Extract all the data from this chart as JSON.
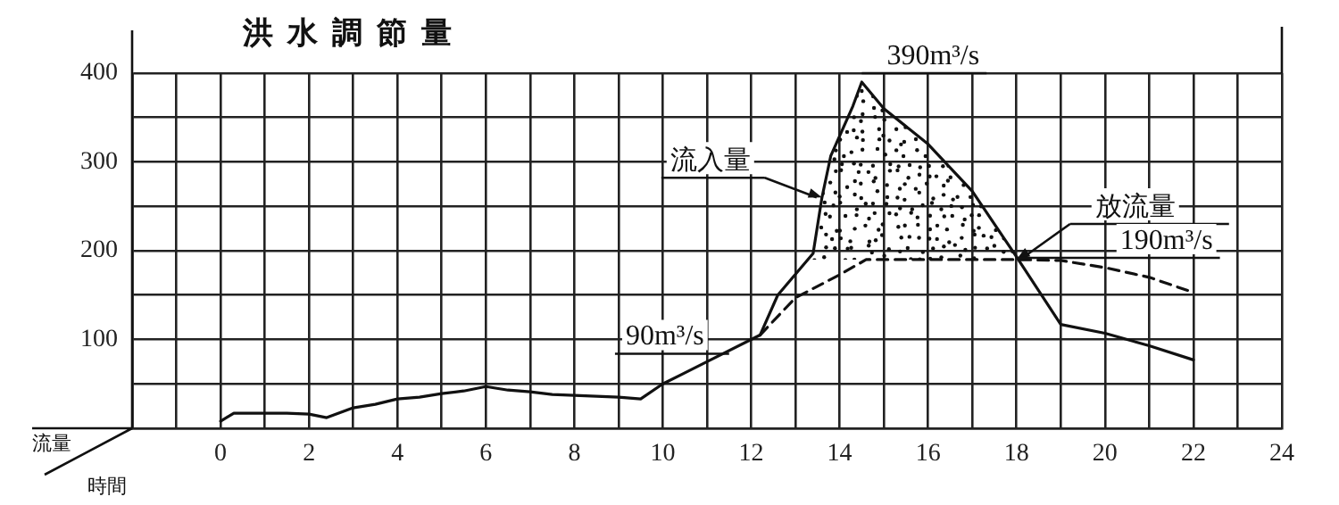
{
  "chart_data": {
    "type": "line",
    "title": "洪水調節量",
    "xlabel": "時間",
    "ylabel": "流量",
    "xlim": [
      -2,
      24
    ],
    "ylim": [
      0,
      400
    ],
    "xticks": [
      {
        "value": -2,
        "label": null
      },
      {
        "value": -1,
        "label": null
      },
      0,
      {
        "value": 1,
        "label": null
      },
      2,
      {
        "value": 3,
        "label": null
      },
      4,
      {
        "value": 5,
        "label": null
      },
      6,
      {
        "value": 7,
        "label": null
      },
      8,
      {
        "value": 9,
        "label": null
      },
      10,
      {
        "value": 11,
        "label": null
      },
      12,
      {
        "value": 13,
        "label": null
      },
      14,
      {
        "value": 15,
        "label": null
      },
      16,
      {
        "value": 17,
        "label": null
      },
      18,
      {
        "value": 19,
        "label": null
      },
      20,
      {
        "value": 21,
        "label": null
      },
      22,
      {
        "value": 23,
        "label": null
      },
      24
    ],
    "yticks": [
      {
        "value": 0,
        "label": null
      },
      {
        "value": 50,
        "label": null
      },
      100,
      {
        "value": 150,
        "label": null
      },
      200,
      {
        "value": 250,
        "label": null
      },
      300,
      {
        "value": 350,
        "label": null
      },
      400
    ],
    "grid": true,
    "legend": false,
    "marker": "none",
    "series": [
      {
        "name": "流入量",
        "color": "#111111",
        "line_style": "solid",
        "x": [
          0,
          0.3,
          1,
          1.5,
          2,
          2.4,
          3,
          3.5,
          4,
          4.5,
          5,
          5.5,
          6,
          6.5,
          7,
          7.5,
          8,
          8.5,
          9,
          9.5,
          10,
          11,
          12.2,
          12.6,
          13.4,
          13.6,
          13.8,
          14.3,
          14.5,
          15,
          16,
          17,
          18,
          19,
          20,
          21,
          22
        ],
        "values": [
          8,
          17,
          17,
          17,
          16,
          12,
          23,
          27,
          33,
          35,
          39,
          42,
          47,
          43,
          41,
          38,
          37,
          36,
          35,
          33,
          50,
          75,
          105,
          150,
          197,
          260,
          307,
          363,
          390,
          360,
          320,
          267,
          193,
          117,
          107,
          93,
          77
        ]
      },
      {
        "name": "放流量",
        "color": "#111111",
        "line_style": "dashed",
        "x": [
          12.2,
          13,
          14,
          14.6,
          18,
          19,
          20,
          21,
          22
        ],
        "values": [
          105,
          147,
          173,
          190,
          190,
          189,
          181,
          170,
          153
        ]
      }
    ],
    "annotations": [
      {
        "text": "390m³/s",
        "x": 14.5,
        "y": 390
      },
      {
        "text": "90m³/s",
        "x": 11.5,
        "y": 90
      },
      {
        "text": "190m³/s",
        "x": 18,
        "y": 190
      }
    ]
  }
}
